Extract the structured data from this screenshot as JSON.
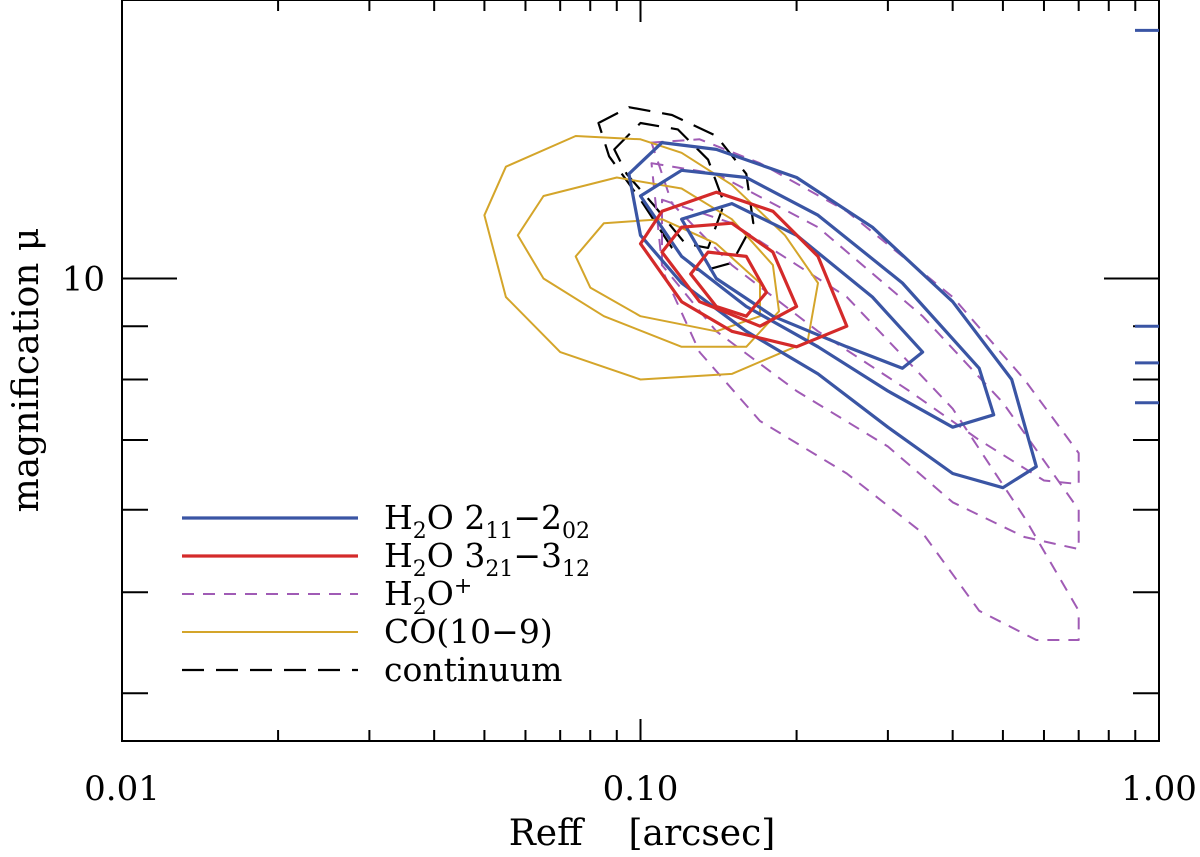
{
  "chart_data": {
    "type": "contour",
    "xlabel": "Reff    [arcsec]",
    "ylabel": "magnification μ",
    "x_scale": "log",
    "y_scale": "log",
    "xlim": [
      0.01,
      1.0
    ],
    "ylim": [
      3.6,
      18.5
    ],
    "x_ticks": [
      {
        "value": 0.01,
        "label": "0.01"
      },
      {
        "value": 0.1,
        "label": "0.10"
      },
      {
        "value": 1.0,
        "label": "1.00"
      }
    ],
    "y_ticks": [
      {
        "value": 10,
        "label": "10"
      }
    ],
    "legend_position": "bottom-left",
    "right_axis_marks": [
      17.3,
      9.0,
      8.3,
      7.6
    ],
    "right_axis_mark_color": "#3a55a4",
    "series": [
      {
        "name": "continuum",
        "color": "#000000",
        "style": "long-dash",
        "legend_label": "continuum",
        "contours": [
          [
            [
              0.083,
              14.1
            ],
            [
              0.095,
              14.6
            ],
            [
              0.115,
              14.35
            ],
            [
              0.14,
              13.7
            ],
            [
              0.16,
              12.6
            ],
            [
              0.165,
              11.3
            ],
            [
              0.15,
              10.35
            ],
            [
              0.13,
              10.15
            ],
            [
              0.115,
              10.7
            ],
            [
              0.1,
              11.9
            ],
            [
              0.087,
              13.1
            ],
            [
              0.083,
              14.1
            ]
          ],
          [
            [
              0.089,
              13.3
            ],
            [
              0.1,
              14.1
            ],
            [
              0.118,
              13.9
            ],
            [
              0.135,
              13.0
            ],
            [
              0.145,
              11.8
            ],
            [
              0.135,
              10.7
            ],
            [
              0.122,
              10.8
            ],
            [
              0.107,
              11.7
            ],
            [
              0.094,
              12.6
            ],
            [
              0.089,
              13.3
            ]
          ]
        ]
      },
      {
        "name": "H2O+",
        "color": "#a05bb5",
        "style": "short-dash",
        "legend_label_main": "H",
        "legend_label_sub": "2",
        "legend_label_after": "O",
        "legend_label_sup": "+",
        "contours": [
          [
            [
              0.105,
              13.5
            ],
            [
              0.13,
              13.6
            ],
            [
              0.17,
              12.9
            ],
            [
              0.25,
              11.6
            ],
            [
              0.4,
              9.6
            ],
            [
              0.55,
              8.0
            ],
            [
              0.7,
              6.8
            ],
            [
              0.7,
              6.35
            ],
            [
              0.6,
              6.4
            ],
            [
              0.45,
              7.0
            ],
            [
              0.33,
              7.8
            ],
            [
              0.22,
              8.9
            ],
            [
              0.15,
              10.3
            ],
            [
              0.115,
              11.8
            ],
            [
              0.105,
              13.5
            ]
          ],
          [
            [
              0.105,
              12.9
            ],
            [
              0.14,
              12.6
            ],
            [
              0.22,
              11.2
            ],
            [
              0.35,
              9.2
            ],
            [
              0.5,
              7.6
            ],
            [
              0.7,
              6.0
            ],
            [
              0.7,
              5.5
            ],
            [
              0.55,
              5.65
            ],
            [
              0.4,
              6.1
            ],
            [
              0.3,
              6.9
            ],
            [
              0.2,
              7.8
            ],
            [
              0.14,
              8.9
            ],
            [
              0.11,
              10.3
            ],
            [
              0.105,
              12.9
            ]
          ],
          [
            [
              0.11,
              11.9
            ],
            [
              0.15,
              11.3
            ],
            [
              0.25,
              9.6
            ],
            [
              0.4,
              7.5
            ],
            [
              0.55,
              5.9
            ],
            [
              0.7,
              4.8
            ],
            [
              0.7,
              4.5
            ],
            [
              0.58,
              4.5
            ],
            [
              0.45,
              4.8
            ],
            [
              0.35,
              5.7
            ],
            [
              0.25,
              6.5
            ],
            [
              0.17,
              7.3
            ],
            [
              0.13,
              8.5
            ],
            [
              0.11,
              10.2
            ],
            [
              0.11,
              11.9
            ]
          ]
        ]
      },
      {
        "name": "CO(10-9)",
        "color": "#d4a52a",
        "style": "solid-thin",
        "legend_label_main": "CO(10−9)",
        "contours": [
          [
            [
              0.05,
              11.5
            ],
            [
              0.055,
              12.8
            ],
            [
              0.075,
              13.7
            ],
            [
              0.1,
              13.6
            ],
            [
              0.12,
              13.2
            ],
            [
              0.15,
              12.3
            ],
            [
              0.19,
              11.0
            ],
            [
              0.22,
              9.9
            ],
            [
              0.21,
              8.7
            ],
            [
              0.15,
              8.1
            ],
            [
              0.1,
              8.0
            ],
            [
              0.07,
              8.5
            ],
            [
              0.055,
              9.6
            ],
            [
              0.05,
              11.5
            ]
          ],
          [
            [
              0.058,
              11.0
            ],
            [
              0.065,
              12.0
            ],
            [
              0.09,
              12.5
            ],
            [
              0.12,
              12.2
            ],
            [
              0.15,
              11.4
            ],
            [
              0.18,
              10.3
            ],
            [
              0.185,
              9.3
            ],
            [
              0.16,
              8.6
            ],
            [
              0.12,
              8.6
            ],
            [
              0.085,
              9.2
            ],
            [
              0.065,
              10.0
            ],
            [
              0.058,
              11.0
            ]
          ],
          [
            [
              0.075,
              10.5
            ],
            [
              0.085,
              11.3
            ],
            [
              0.11,
              11.4
            ],
            [
              0.14,
              10.8
            ],
            [
              0.17,
              9.9
            ],
            [
              0.17,
              9.2
            ],
            [
              0.14,
              8.9
            ],
            [
              0.1,
              9.2
            ],
            [
              0.08,
              9.8
            ],
            [
              0.075,
              10.5
            ]
          ]
        ]
      },
      {
        "name": "H2O 211-202",
        "color": "#3a55a4",
        "style": "solid-thick",
        "legend_label_main": "H",
        "legend_label_sub": "2",
        "legend_label_after": "O 2",
        "legend_label_sub2": "11",
        "legend_label_dash": "−2",
        "legend_label_sub3": "02",
        "contours": [
          [
            [
              0.095,
              12.6
            ],
            [
              0.11,
              13.5
            ],
            [
              0.14,
              13.3
            ],
            [
              0.2,
              12.5
            ],
            [
              0.28,
              11.2
            ],
            [
              0.4,
              9.5
            ],
            [
              0.52,
              8.0
            ],
            [
              0.58,
              6.6
            ],
            [
              0.5,
              6.3
            ],
            [
              0.4,
              6.5
            ],
            [
              0.3,
              7.2
            ],
            [
              0.22,
              8.1
            ],
            [
              0.16,
              8.9
            ],
            [
              0.12,
              9.9
            ],
            [
              0.1,
              11.0
            ],
            [
              0.095,
              12.6
            ]
          ],
          [
            [
              0.1,
              12.0
            ],
            [
              0.12,
              12.7
            ],
            [
              0.16,
              12.5
            ],
            [
              0.22,
              11.5
            ],
            [
              0.32,
              9.9
            ],
            [
              0.45,
              8.2
            ],
            [
              0.48,
              7.4
            ],
            [
              0.4,
              7.2
            ],
            [
              0.3,
              7.8
            ],
            [
              0.22,
              8.6
            ],
            [
              0.16,
              9.4
            ],
            [
              0.12,
              10.5
            ],
            [
              0.1,
              12.0
            ]
          ],
          [
            [
              0.12,
              11.4
            ],
            [
              0.15,
              11.8
            ],
            [
              0.2,
              11.0
            ],
            [
              0.28,
              9.6
            ],
            [
              0.35,
              8.5
            ],
            [
              0.32,
              8.2
            ],
            [
              0.25,
              8.6
            ],
            [
              0.18,
              9.2
            ],
            [
              0.14,
              10.0
            ],
            [
              0.12,
              11.4
            ]
          ]
        ]
      },
      {
        "name": "H2O 321-312",
        "color": "#d42a2a",
        "style": "solid-thick",
        "legend_label_main": "H",
        "legend_label_sub": "2",
        "legend_label_after": "O 3",
        "legend_label_sub2": "21",
        "legend_label_dash": "−3",
        "legend_label_sub3": "12",
        "contours": [
          [
            [
              0.1,
              10.8
            ],
            [
              0.11,
              11.6
            ],
            [
              0.14,
              12.1
            ],
            [
              0.18,
              11.6
            ],
            [
              0.22,
              10.5
            ],
            [
              0.25,
              9.0
            ],
            [
              0.2,
              8.6
            ],
            [
              0.15,
              8.9
            ],
            [
              0.12,
              9.5
            ],
            [
              0.1,
              10.8
            ]
          ],
          [
            [
              0.11,
              10.6
            ],
            [
              0.12,
              11.2
            ],
            [
              0.15,
              11.3
            ],
            [
              0.18,
              10.6
            ],
            [
              0.2,
              9.4
            ],
            [
              0.17,
              9.0
            ],
            [
              0.13,
              9.5
            ],
            [
              0.11,
              10.6
            ]
          ],
          [
            [
              0.125,
              10.1
            ],
            [
              0.135,
              10.6
            ],
            [
              0.16,
              10.5
            ],
            [
              0.175,
              9.7
            ],
            [
              0.16,
              9.2
            ],
            [
              0.14,
              9.4
            ],
            [
              0.125,
              10.1
            ]
          ]
        ]
      }
    ],
    "legend_order": [
      "H2O 211-202",
      "H2O 321-312",
      "H2O+",
      "CO(10-9)",
      "continuum"
    ]
  }
}
